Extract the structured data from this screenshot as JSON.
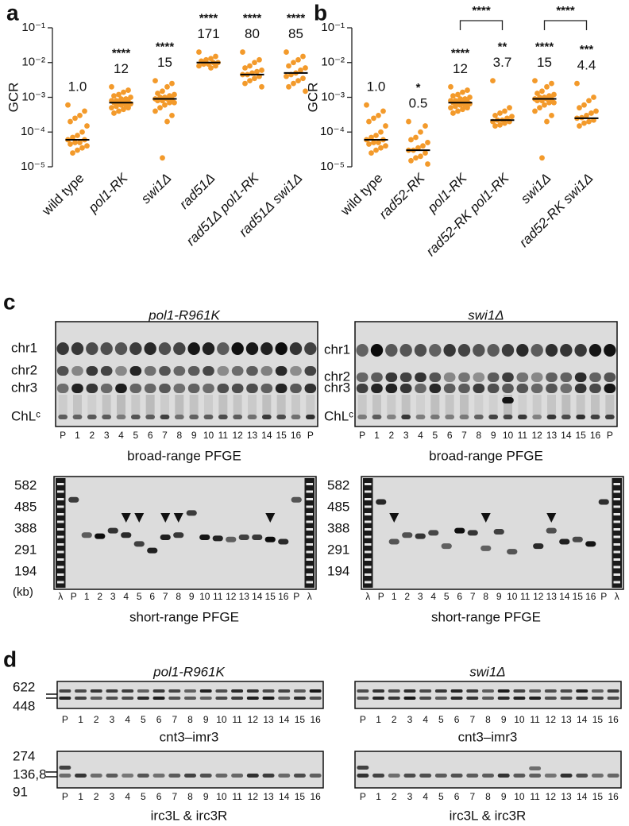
{
  "panel_labels": [
    "a",
    "b",
    "c",
    "d"
  ],
  "chart_data": [
    {
      "type": "strip",
      "y_label": "GCR",
      "log_scale": true,
      "color": "#f39a2b",
      "median_color": "#000000",
      "ylim": [
        1e-05,
        0.1
      ],
      "yticks": [
        {
          "value": 1e-05,
          "label": "10⁻⁵"
        },
        {
          "value": 0.0001,
          "label": "10⁻⁴"
        },
        {
          "value": 0.001,
          "label": "10⁻³"
        },
        {
          "value": 0.01,
          "label": "10⁻²"
        },
        {
          "value": 0.1,
          "label": "10⁻¹"
        }
      ],
      "categories": [
        "wild type",
        "pol1-RK",
        "swi1Δ",
        "rad51Δ",
        "rad51Δ pol1-RK",
        "rad51Δ swi1Δ"
      ],
      "italic_categories": [
        false,
        true,
        true,
        true,
        true,
        true
      ],
      "values": [
        [
          0.0006,
          0.0004,
          0.0003,
          0.00025,
          0.0002,
          0.00015,
          0.0001,
          8e-05,
          7e-05,
          6e-05,
          6e-05,
          5e-05,
          5e-05,
          4.5e-05,
          4e-05,
          3.5e-05,
          3e-05,
          2.5e-05
        ],
        [
          0.002,
          0.0016,
          0.0014,
          0.0012,
          0.0011,
          0.001,
          0.0009,
          0.0009,
          0.0008,
          0.0008,
          0.00075,
          0.0007,
          0.0007,
          0.0007,
          0.00065,
          0.0006,
          0.0006,
          0.00055,
          0.0005,
          0.0005,
          0.00045,
          0.0004,
          0.00035
        ],
        [
          0.003,
          0.0025,
          0.002,
          0.0015,
          0.0013,
          0.0012,
          0.0011,
          0.001,
          0.001,
          0.0009,
          0.0009,
          0.0009,
          0.0008,
          0.0008,
          0.0007,
          0.0007,
          0.0006,
          0.0005,
          0.0004,
          0.0003,
          0.0002,
          1.8e-05
        ],
        [
          0.02,
          0.015,
          0.013,
          0.012,
          0.011,
          0.01,
          0.01,
          0.009,
          0.009,
          0.008,
          0.008,
          0.007
        ],
        [
          0.02,
          0.012,
          0.01,
          0.008,
          0.007,
          0.006,
          0.0055,
          0.005,
          0.0045,
          0.0045,
          0.004,
          0.0035,
          0.003,
          0.0025,
          0.002
        ],
        [
          0.02,
          0.015,
          0.012,
          0.01,
          0.008,
          0.007,
          0.006,
          0.005,
          0.0045,
          0.004,
          0.0035,
          0.003,
          0.0025,
          0.002,
          0.0015
        ]
      ],
      "medians": [
        6e-05,
        0.0007,
        0.0009,
        0.01,
        0.0045,
        0.005
      ],
      "stars": [
        null,
        "****",
        "****",
        "****",
        "****",
        "****"
      ],
      "folds": [
        "1.0",
        "12",
        "15",
        "171",
        "80",
        "85"
      ]
    },
    {
      "type": "strip",
      "y_label": "GCR",
      "log_scale": true,
      "color": "#f39a2b",
      "median_color": "#000000",
      "ylim": [
        1e-05,
        0.1
      ],
      "yticks": [
        {
          "value": 1e-05,
          "label": "10⁻⁵"
        },
        {
          "value": 0.0001,
          "label": "10⁻⁴"
        },
        {
          "value": 0.001,
          "label": "10⁻³"
        },
        {
          "value": 0.01,
          "label": "10⁻²"
        },
        {
          "value": 0.1,
          "label": "10⁻¹"
        }
      ],
      "categories": [
        "wild type",
        "rad52-RK",
        "pol1-RK",
        "rad52-RK pol1-RK",
        "swi1Δ",
        "rad52-RK swi1Δ"
      ],
      "italic_categories": [
        false,
        true,
        true,
        true,
        true,
        true
      ],
      "values": [
        [
          0.0006,
          0.0004,
          0.0003,
          0.00025,
          0.0002,
          0.00015,
          0.0001,
          8e-05,
          7e-05,
          6e-05,
          6e-05,
          5e-05,
          5e-05,
          4.5e-05,
          4e-05,
          3.5e-05,
          3e-05,
          2.5e-05
        ],
        [
          0.0002,
          0.00015,
          0.0001,
          7e-05,
          6e-05,
          5e-05,
          4e-05,
          3.5e-05,
          3e-05,
          3e-05,
          2.5e-05,
          2e-05,
          1.8e-05,
          1.5e-05,
          1.2e-05
        ],
        [
          0.002,
          0.0016,
          0.0014,
          0.0012,
          0.0011,
          0.001,
          0.0009,
          0.0009,
          0.0008,
          0.0008,
          0.00075,
          0.0007,
          0.0007,
          0.0007,
          0.00065,
          0.0006,
          0.0006,
          0.00055,
          0.0005,
          0.0005,
          0.00045,
          0.0004,
          0.00035
        ],
        [
          0.003,
          0.0005,
          0.0004,
          0.00035,
          0.0003,
          0.00028,
          0.00025,
          0.00022,
          0.00022,
          0.0002,
          0.0002,
          0.00018,
          0.00016,
          0.00015
        ],
        [
          0.003,
          0.0025,
          0.002,
          0.0015,
          0.0013,
          0.0012,
          0.0011,
          0.001,
          0.001,
          0.0009,
          0.0009,
          0.0009,
          0.0008,
          0.0008,
          0.0007,
          0.0007,
          0.0006,
          0.0005,
          0.0004,
          0.0003,
          0.0002,
          1.8e-05
        ],
        [
          0.0025,
          0.001,
          0.0008,
          0.0006,
          0.0005,
          0.0004,
          0.00035,
          0.0003,
          0.00026,
          0.00025,
          0.00022,
          0.0002,
          0.00018,
          0.00015
        ]
      ],
      "medians": [
        6e-05,
        3e-05,
        0.0007,
        0.00022,
        0.0009,
        0.00025
      ],
      "stars": [
        null,
        "*",
        "****",
        "**",
        "****",
        "***"
      ],
      "folds": [
        "1.0",
        "0.5",
        "12",
        "3.7",
        "15",
        "4.4"
      ],
      "brackets": [
        {
          "between": [
            "pol1-RK",
            "rad52-RK pol1-RK"
          ],
          "label": "****"
        },
        {
          "between": [
            "swi1Δ",
            "rad52-RK swi1Δ"
          ],
          "label": "****"
        }
      ]
    }
  ],
  "panel_c": {
    "titles": [
      "pol1-R961K",
      "swi1Δ"
    ],
    "chromosomes": [
      "chr1",
      "chr2",
      "chr3",
      "ChLᶜ"
    ],
    "broad_lanes": [
      "P",
      "1",
      "2",
      "3",
      "4",
      "5",
      "6",
      "7",
      "8",
      "9",
      "10",
      "11",
      "12",
      "13",
      "14",
      "15",
      "16",
      "P"
    ],
    "broad_caption": "broad-range PFGE",
    "short_sizes": [
      582,
      485,
      388,
      291,
      194
    ],
    "size_unit": "(kb)",
    "short_lanes": [
      "λ",
      "P",
      "1",
      "2",
      "3",
      "4",
      "5",
      "6",
      "7",
      "8",
      "9",
      "10",
      "11",
      "12",
      "13",
      "14",
      "15",
      "16",
      "P",
      "λ"
    ],
    "short_caption": "short-range PFGE"
  },
  "panel_d": {
    "titles": [
      "pol1-R961K",
      "swi1Δ"
    ],
    "top_sizes": [
      622,
      448
    ],
    "lanes": [
      "P",
      "1",
      "2",
      "3",
      "4",
      "5",
      "6",
      "7",
      "8",
      "9",
      "10",
      "11",
      "12",
      "13",
      "14",
      "15",
      "16"
    ],
    "top_caption": "cnt3–imr3",
    "bottom_sizes": [
      274,
      "136,8",
      91
    ],
    "bottom_caption": "irc3L & irc3R"
  }
}
